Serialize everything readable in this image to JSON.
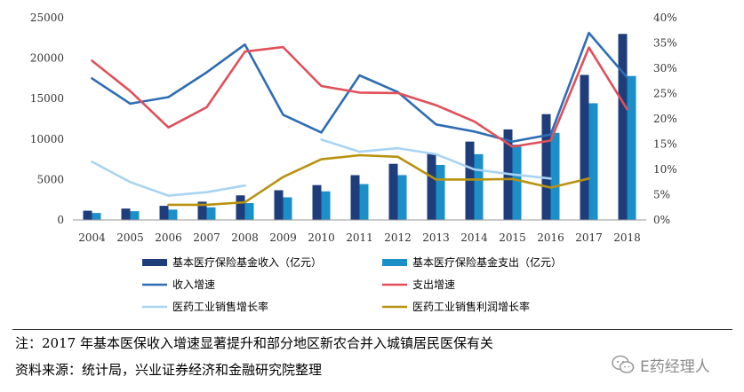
{
  "chart_data": {
    "type": "bar+line",
    "categories": [
      "2004",
      "2005",
      "2006",
      "2007",
      "2008",
      "2009",
      "2010",
      "2011",
      "2012",
      "2013",
      "2014",
      "2015",
      "2016",
      "2017",
      "2018"
    ],
    "left_axis": {
      "min": 0,
      "max": 25000,
      "ticks": [
        "0",
        "5000",
        "10000",
        "15000",
        "20000",
        "25000"
      ]
    },
    "right_axis": {
      "min": 0,
      "max": 40,
      "ticks": [
        "0%",
        "5%",
        "10%",
        "15%",
        "20%",
        "25%",
        "30%",
        "35%",
        "40%"
      ]
    },
    "bar_series": [
      {
        "name": "基本医疗保险基金收入（亿元）",
        "color": "#1f3d7a",
        "values": [
          1141,
          1405,
          1747,
          2257,
          3040,
          3672,
          4309,
          5539,
          6939,
          8248,
          9687,
          11193,
          13084,
          17932,
          23000
        ]
      },
      {
        "name": "基本医疗保险基金支出（亿元）",
        "color": "#1b8fc8",
        "values": [
          862,
          1079,
          1277,
          1562,
          2084,
          2797,
          3538,
          4431,
          5544,
          6801,
          8134,
          9312,
          10767,
          14422,
          17800
        ]
      }
    ],
    "line_series": [
      {
        "name": "收入增速",
        "color": "#2e6db4",
        "values": [
          28.0,
          23.0,
          24.3,
          29.2,
          34.7,
          20.8,
          17.3,
          28.6,
          25.3,
          18.9,
          17.5,
          15.5,
          16.9,
          37.0,
          28.2
        ]
      },
      {
        "name": "支出增速",
        "color": "#e0505a",
        "values": [
          31.5,
          25.5,
          18.3,
          22.3,
          33.3,
          34.2,
          26.5,
          25.2,
          25.1,
          22.7,
          19.5,
          14.5,
          15.7,
          34.1,
          21.9
        ]
      },
      {
        "name": "医药工业销售增长率",
        "color": "#a8d4f2",
        "values": [
          11.5,
          7.5,
          4.8,
          5.5,
          6.8,
          null,
          15.9,
          13.5,
          14.2,
          13.0,
          10.0,
          9.0,
          8.2,
          null,
          null
        ]
      },
      {
        "name": "医药工业销售利润增长率",
        "color": "#b8920f",
        "values": [
          null,
          null,
          3.0,
          3.0,
          3.5,
          8.5,
          12.0,
          12.8,
          12.5,
          8.0,
          8.0,
          8.1,
          6.4,
          8.2,
          null
        ]
      }
    ],
    "legend": [
      "基本医疗保险基金收入（亿元）",
      "基本医疗保险基金支出（亿元）",
      "收入增速",
      "支出增速",
      "医药工业销售增长率",
      "医药工业销售利润增长率"
    ]
  },
  "note": "注：2017 年基本医保收入增速显著提升和部分地区新农合并入城镇居民医保有关",
  "source": "资料来源：统计局，兴业证券经济和金融研究院整理",
  "watermark": "E药经理人"
}
